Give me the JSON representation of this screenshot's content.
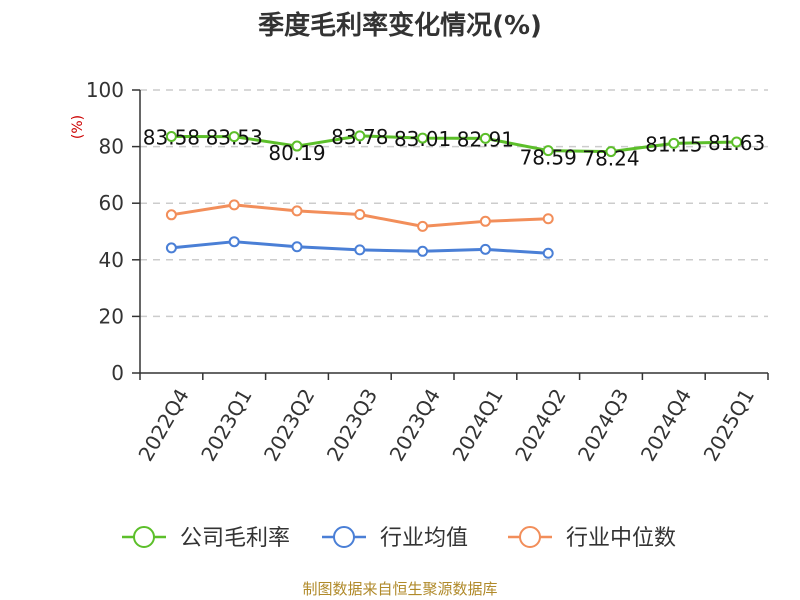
{
  "chart_data": {
    "type": "line",
    "title": "季度毛利率变化情况(%)",
    "ylabel": "(%)",
    "xlabel": "",
    "ylim": [
      0,
      100
    ],
    "yticks": [
      0,
      20,
      40,
      60,
      80,
      100
    ],
    "grid": true,
    "legend_position": "bottom",
    "categories": [
      "2022Q4",
      "2023Q1",
      "2023Q2",
      "2023Q3",
      "2023Q4",
      "2024Q1",
      "2024Q2",
      "2024Q3",
      "2024Q4",
      "2025Q1"
    ],
    "series": [
      {
        "name": "公司毛利率",
        "color": "#5cbf2a",
        "values": [
          83.58,
          83.53,
          80.19,
          83.78,
          83.01,
          82.91,
          78.59,
          78.24,
          81.15,
          81.63
        ],
        "labels": [
          "83.58",
          "83.53",
          "80.19",
          "83.78",
          "83.01",
          "82.91",
          "78.59",
          "78.24",
          "81.15",
          "81.63"
        ]
      },
      {
        "name": "行业均值",
        "color": "#4a7fd6",
        "values": [
          44.2,
          46.4,
          44.6,
          43.5,
          43.0,
          43.7,
          42.3,
          null,
          null,
          null
        ]
      },
      {
        "name": "行业中位数",
        "color": "#f28e5a",
        "values": [
          55.9,
          59.4,
          57.3,
          56.0,
          51.8,
          53.6,
          54.5,
          null,
          null,
          null
        ]
      }
    ],
    "source": "制图数据来自恒生聚源数据库"
  }
}
